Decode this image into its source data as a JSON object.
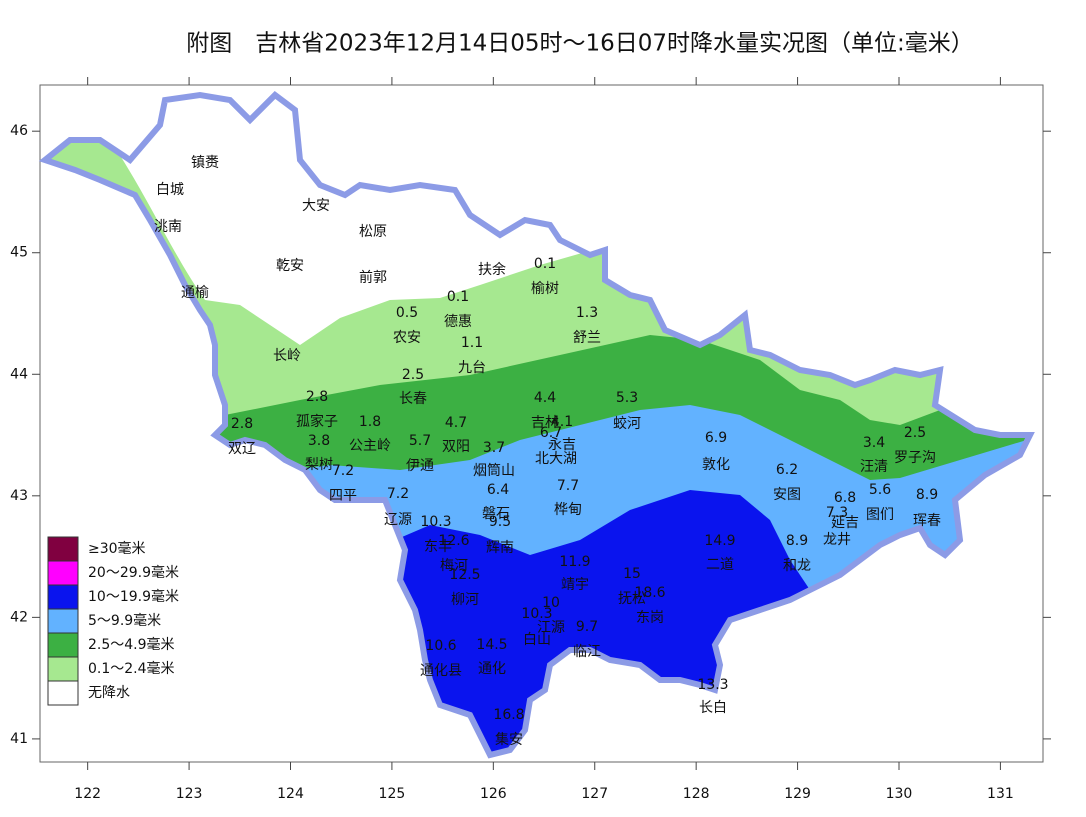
{
  "title": "附图　吉林省2023年12月14日05时～16日07时降水量实况图（单位:毫米）",
  "map": {
    "xlim": [
      121.53,
      131.42
    ],
    "ylim": [
      40.81,
      46.38
    ],
    "xticks": [
      122,
      123,
      124,
      125,
      126,
      127,
      128,
      129,
      130,
      131
    ],
    "yticks": [
      41,
      42,
      43,
      44,
      45,
      46
    ]
  },
  "legend": [
    {
      "label": "≥30毫米",
      "color": "#800040"
    },
    {
      "label": "20～29.9毫米",
      "color": "#ff00ff"
    },
    {
      "label": "10～19.9毫米",
      "color": "#0a14ee"
    },
    {
      "label": "5～9.9毫米",
      "color": "#62b2ff"
    },
    {
      "label": "2.5～4.9毫米",
      "color": "#3cb043"
    },
    {
      "label": "0.1～2.4毫米",
      "color": "#a6e890"
    },
    {
      "label": "无降水",
      "color": "#ffffff"
    }
  ],
  "places": [
    "镇赉",
    "白城",
    "洮南",
    "大安",
    "松原",
    "乾安",
    "前郭",
    "扶余",
    "榆树",
    "通榆",
    "农安",
    "德惠",
    "舒兰",
    "长岭",
    "九台",
    "长春",
    "孤家子",
    "吉林",
    "蛟河",
    "双辽",
    "公主岭",
    "双阳",
    "永吉",
    "梨树",
    "伊通",
    "烟筒山",
    "北大湖",
    "敦化",
    "汪清",
    "罗子沟",
    "四平",
    "安图",
    "磐石",
    "桦甸",
    "辽源",
    "图们",
    "延吉",
    "珲春",
    "龙井",
    "东丰",
    "辉南",
    "梅河",
    "二道",
    "和龙",
    "靖宇",
    "柳河",
    "抚松",
    "东岗",
    "江源",
    "白山",
    "临江",
    "通化县",
    "通化",
    "长白",
    "集安"
  ],
  "stations": [
    0.1,
    0.5,
    0.1,
    1.3,
    1.1,
    2.5,
    2.8,
    4.4,
    5.3,
    2.8,
    1.8,
    4.7,
    4.1,
    6.7,
    3.8,
    5.7,
    3.7,
    6.9,
    3.4,
    2.5,
    7.2,
    6.4,
    7.7,
    6.2,
    7.2,
    5.6,
    6.8,
    8.9,
    7.3,
    9.5,
    10.3,
    12.6,
    14.9,
    8.9,
    11.9,
    12.5,
    15,
    18.6,
    10,
    10.3,
    9.7,
    10.6,
    14.5,
    13.3,
    16.8
  ]
}
